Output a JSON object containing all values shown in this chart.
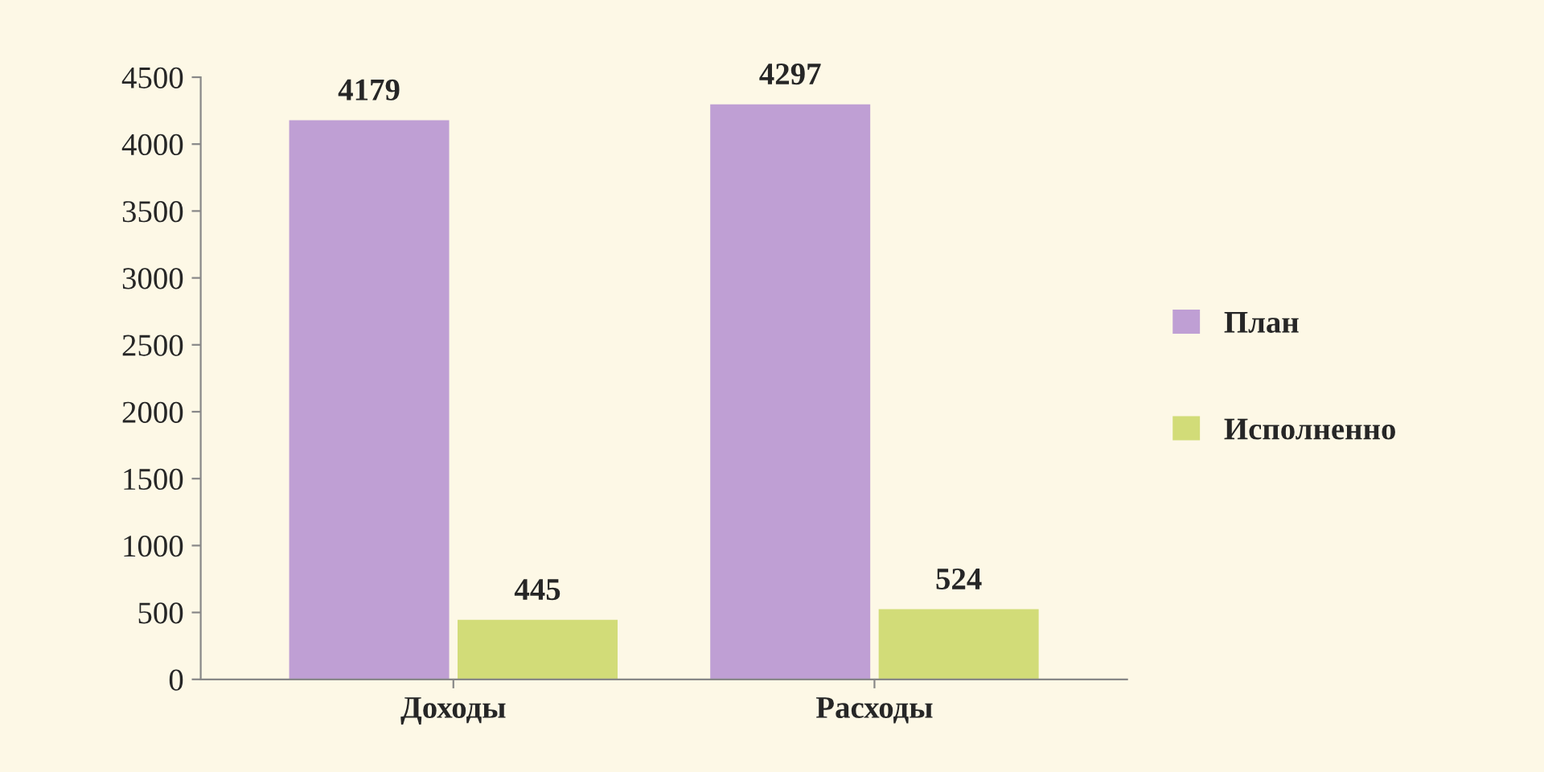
{
  "chart_data": {
    "type": "bar",
    "categories": [
      "Доходы",
      "Расходы"
    ],
    "series": [
      {
        "name": "План",
        "color": "#bf9fd4",
        "values": [
          4179,
          4297
        ]
      },
      {
        "name": "Исполненно",
        "color": "#d2dc78",
        "values": [
          445,
          524
        ]
      }
    ],
    "ylim": [
      0,
      4500
    ],
    "yticks": [
      0,
      500,
      1000,
      1500,
      2000,
      2500,
      3000,
      3500,
      4000,
      4500
    ],
    "data_labels": true,
    "legend": "right",
    "grid": false
  }
}
